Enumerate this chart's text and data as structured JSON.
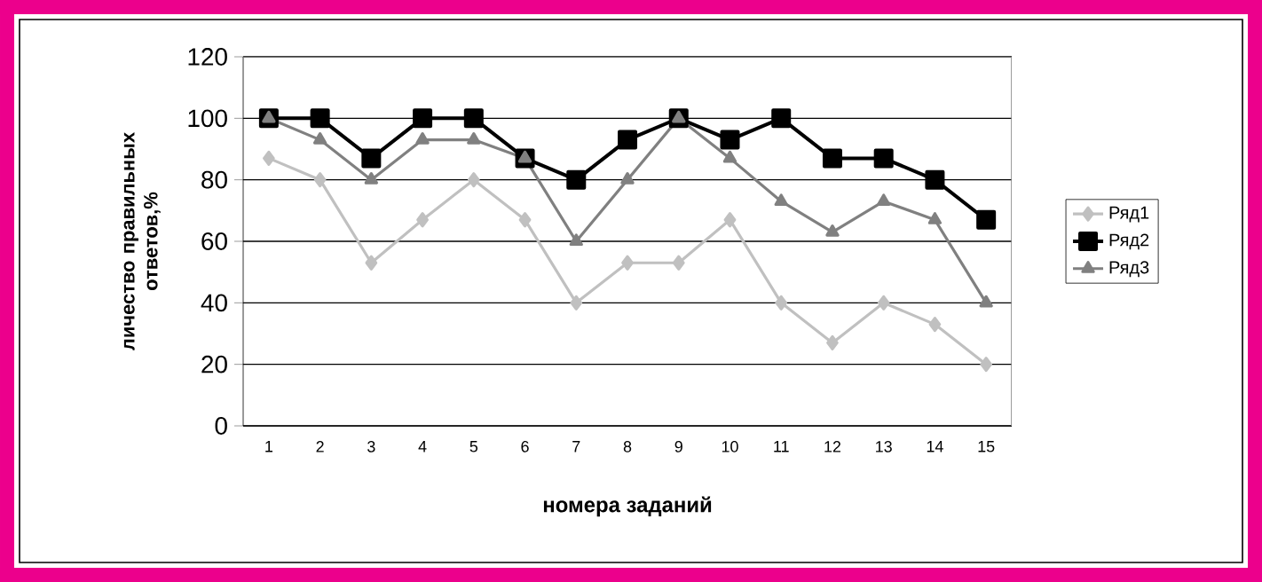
{
  "chart_data": {
    "type": "line",
    "xlabel": "номера заданий",
    "ylabel": "личество правильных ответов,%",
    "categories": [
      "1",
      "2",
      "3",
      "4",
      "5",
      "6",
      "7",
      "8",
      "9",
      "10",
      "11",
      "12",
      "13",
      "14",
      "15"
    ],
    "series": [
      {
        "name": "Ряд1",
        "color": "#c0c0c0",
        "marker": "diamond",
        "values": [
          87,
          80,
          53,
          67,
          80,
          67,
          40,
          53,
          53,
          67,
          40,
          27,
          40,
          33,
          20
        ]
      },
      {
        "name": "Ряд2",
        "color": "#000000",
        "marker": "square",
        "values": [
          100,
          100,
          87,
          100,
          100,
          87,
          80,
          93,
          100,
          93,
          100,
          87,
          87,
          80,
          67
        ]
      },
      {
        "name": "Ряд3",
        "color": "#808080",
        "marker": "triangle",
        "values": [
          100,
          93,
          80,
          93,
          93,
          87,
          60,
          80,
          100,
          87,
          73,
          63,
          73,
          67,
          40
        ]
      }
    ],
    "ylim": [
      0,
      120
    ],
    "yticks": [
      0,
      20,
      40,
      60,
      80,
      100,
      120
    ],
    "grid": "y",
    "legend": "right",
    "line_style": "solid"
  }
}
